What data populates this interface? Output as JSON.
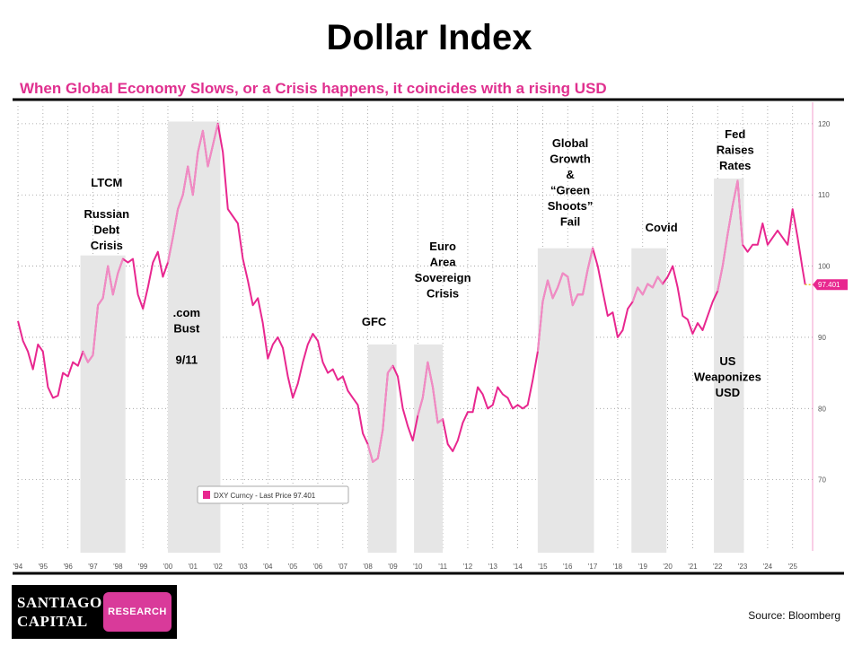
{
  "header": {
    "title": "Dollar Index",
    "subtitle": "When Global Economy Slows, or a Crisis happens, it coincides with a rising USD"
  },
  "footer": {
    "logo_line1": "Santiago",
    "logo_line2": "Capital",
    "logo_badge": "RESEARCH",
    "source": "Source:  Bloomberg"
  },
  "colors": {
    "line": "#e8278f",
    "line_light": "#f08cc4",
    "band": "#e6e6e6",
    "subtitle": "#e0308f"
  },
  "chart_data": {
    "type": "line",
    "series": [
      {
        "name": "DXY Curncy - Last Price 97.401",
        "last_value": "97.401"
      }
    ],
    "x_ticks": [
      "'94",
      "'95",
      "'96",
      "'97",
      "'98",
      "'99",
      "'00",
      "'01",
      "'02",
      "'03",
      "'04",
      "'05",
      "'06",
      "'07",
      "'08",
      "'09",
      "'10",
      "'11",
      "'12",
      "'13",
      "'14",
      "'15",
      "'16",
      "'17",
      "'18",
      "'19",
      "'20",
      "'21",
      "'22",
      "'23",
      "'24",
      "'25"
    ],
    "y_ticks": [
      "70",
      "80",
      "90",
      "100",
      "110",
      "120"
    ],
    "xlim": [
      1994.0,
      2025.8
    ],
    "ylim": [
      60,
      122
    ],
    "points": [
      [
        1994.0,
        92.3
      ],
      [
        1994.2,
        89.5
      ],
      [
        1994.4,
        88.0
      ],
      [
        1994.6,
        85.5
      ],
      [
        1994.8,
        89.0
      ],
      [
        1995.0,
        88.0
      ],
      [
        1995.2,
        83.0
      ],
      [
        1995.4,
        81.5
      ],
      [
        1995.6,
        81.8
      ],
      [
        1995.8,
        85.0
      ],
      [
        1996.0,
        84.5
      ],
      [
        1996.2,
        86.5
      ],
      [
        1996.4,
        86.0
      ],
      [
        1996.6,
        88.0
      ],
      [
        1996.8,
        86.5
      ],
      [
        1997.0,
        87.5
      ],
      [
        1997.2,
        94.5
      ],
      [
        1997.4,
        95.5
      ],
      [
        1997.6,
        100.0
      ],
      [
        1997.8,
        96.0
      ],
      [
        1998.0,
        99.0
      ],
      [
        1998.2,
        101.0
      ],
      [
        1998.4,
        100.5
      ],
      [
        1998.6,
        101.0
      ],
      [
        1998.8,
        96.0
      ],
      [
        1999.0,
        94.0
      ],
      [
        1999.2,
        97.0
      ],
      [
        1999.4,
        100.5
      ],
      [
        1999.6,
        102.0
      ],
      [
        1999.8,
        98.5
      ],
      [
        2000.0,
        100.5
      ],
      [
        2000.2,
        104.0
      ],
      [
        2000.4,
        108.0
      ],
      [
        2000.6,
        110.0
      ],
      [
        2000.8,
        114.0
      ],
      [
        2001.0,
        110.0
      ],
      [
        2001.2,
        116.0
      ],
      [
        2001.4,
        119.0
      ],
      [
        2001.6,
        114.0
      ],
      [
        2001.8,
        117.0
      ],
      [
        2002.0,
        120.0
      ],
      [
        2002.2,
        116.0
      ],
      [
        2002.4,
        108.0
      ],
      [
        2002.6,
        107.0
      ],
      [
        2002.8,
        106.0
      ],
      [
        2003.0,
        101.0
      ],
      [
        2003.2,
        98.0
      ],
      [
        2003.4,
        94.5
      ],
      [
        2003.6,
        95.5
      ],
      [
        2003.8,
        92.0
      ],
      [
        2004.0,
        87.0
      ],
      [
        2004.2,
        89.0
      ],
      [
        2004.4,
        90.0
      ],
      [
        2004.6,
        88.5
      ],
      [
        2004.8,
        84.5
      ],
      [
        2005.0,
        81.5
      ],
      [
        2005.2,
        83.5
      ],
      [
        2005.4,
        86.5
      ],
      [
        2005.6,
        89.0
      ],
      [
        2005.8,
        90.5
      ],
      [
        2006.0,
        89.5
      ],
      [
        2006.2,
        86.5
      ],
      [
        2006.4,
        85.0
      ],
      [
        2006.6,
        85.5
      ],
      [
        2006.8,
        84.0
      ],
      [
        2007.0,
        84.5
      ],
      [
        2007.2,
        82.5
      ],
      [
        2007.4,
        81.5
      ],
      [
        2007.6,
        80.5
      ],
      [
        2007.8,
        76.5
      ],
      [
        2008.0,
        75.0
      ],
      [
        2008.2,
        72.5
      ],
      [
        2008.4,
        73.0
      ],
      [
        2008.6,
        77.0
      ],
      [
        2008.8,
        85.0
      ],
      [
        2009.0,
        86.0
      ],
      [
        2009.2,
        84.5
      ],
      [
        2009.4,
        80.0
      ],
      [
        2009.6,
        77.5
      ],
      [
        2009.8,
        75.5
      ],
      [
        2010.0,
        79.0
      ],
      [
        2010.2,
        81.5
      ],
      [
        2010.4,
        86.5
      ],
      [
        2010.6,
        83.0
      ],
      [
        2010.8,
        78.0
      ],
      [
        2011.0,
        78.5
      ],
      [
        2011.2,
        75.0
      ],
      [
        2011.4,
        74.0
      ],
      [
        2011.6,
        75.5
      ],
      [
        2011.8,
        78.0
      ],
      [
        2012.0,
        79.5
      ],
      [
        2012.2,
        79.5
      ],
      [
        2012.4,
        83.0
      ],
      [
        2012.6,
        82.0
      ],
      [
        2012.8,
        80.0
      ],
      [
        2013.0,
        80.5
      ],
      [
        2013.2,
        83.0
      ],
      [
        2013.4,
        82.0
      ],
      [
        2013.6,
        81.5
      ],
      [
        2013.8,
        80.0
      ],
      [
        2014.0,
        80.5
      ],
      [
        2014.2,
        80.0
      ],
      [
        2014.4,
        80.5
      ],
      [
        2014.6,
        84.0
      ],
      [
        2014.8,
        88.0
      ],
      [
        2015.0,
        95.0
      ],
      [
        2015.2,
        98.0
      ],
      [
        2015.4,
        95.5
      ],
      [
        2015.6,
        97.0
      ],
      [
        2015.8,
        99.0
      ],
      [
        2016.0,
        98.5
      ],
      [
        2016.2,
        94.5
      ],
      [
        2016.4,
        96.0
      ],
      [
        2016.6,
        96.0
      ],
      [
        2016.8,
        99.5
      ],
      [
        2017.0,
        102.5
      ],
      [
        2017.2,
        100.0
      ],
      [
        2017.4,
        96.5
      ],
      [
        2017.6,
        93.0
      ],
      [
        2017.8,
        93.5
      ],
      [
        2018.0,
        90.0
      ],
      [
        2018.2,
        91.0
      ],
      [
        2018.4,
        94.0
      ],
      [
        2018.6,
        95.0
      ],
      [
        2018.8,
        97.0
      ],
      [
        2019.0,
        96.0
      ],
      [
        2019.2,
        97.5
      ],
      [
        2019.4,
        97.0
      ],
      [
        2019.6,
        98.5
      ],
      [
        2019.8,
        97.5
      ],
      [
        2020.0,
        98.5
      ],
      [
        2020.2,
        100.0
      ],
      [
        2020.4,
        97.0
      ],
      [
        2020.6,
        93.0
      ],
      [
        2020.8,
        92.5
      ],
      [
        2021.0,
        90.5
      ],
      [
        2021.2,
        92.0
      ],
      [
        2021.4,
        91.0
      ],
      [
        2021.6,
        93.0
      ],
      [
        2021.8,
        95.0
      ],
      [
        2022.0,
        96.5
      ],
      [
        2022.2,
        100.0
      ],
      [
        2022.4,
        104.5
      ],
      [
        2022.6,
        108.5
      ],
      [
        2022.8,
        112.0
      ],
      [
        2023.0,
        103.0
      ],
      [
        2023.2,
        102.0
      ],
      [
        2023.4,
        103.0
      ],
      [
        2023.6,
        103.0
      ],
      [
        2023.8,
        106.0
      ],
      [
        2024.0,
        103.0
      ],
      [
        2024.2,
        104.0
      ],
      [
        2024.4,
        105.0
      ],
      [
        2024.6,
        104.0
      ],
      [
        2024.8,
        103.0
      ],
      [
        2025.0,
        108.0
      ],
      [
        2025.2,
        104.0
      ],
      [
        2025.4,
        99.5
      ],
      [
        2025.5,
        97.4
      ]
    ],
    "crisis_bands": [
      {
        "from": 1996.5,
        "to": 1998.3,
        "label": [
          "LTCM",
          "",
          "Russian",
          "Debt",
          "Crisis"
        ],
        "label_at": 1997.55
      },
      {
        "from": 2000.0,
        "to": 2002.1,
        "label": [
          ".com",
          "Bust",
          "",
          "9/11"
        ],
        "label_at": 2000.75
      },
      {
        "from": 2008.0,
        "to": 2009.15,
        "label": [
          "GFC"
        ],
        "label_at": 2008.25
      },
      {
        "from": 2009.85,
        "to": 2011.0,
        "label": [
          "Euro",
          "Area",
          "Sovereign",
          "Crisis"
        ],
        "label_at": 2011.0
      },
      {
        "from": 2014.8,
        "to": 2017.05,
        "label": [
          "Global",
          "Growth",
          "&",
          "“Green",
          "Shoots”",
          "Fail"
        ],
        "label_at": 2016.1
      },
      {
        "from": 2018.55,
        "to": 2019.95,
        "label": [
          "Covid"
        ],
        "label_at": 2019.75
      },
      {
        "from": 2021.85,
        "to": 2023.05,
        "label": [
          "Fed",
          "Raises",
          "Rates"
        ],
        "label_at": 2022.7
      }
    ],
    "annotations": [
      {
        "text": [
          "US",
          "Weaponizes",
          "USD"
        ],
        "at_x": 2022.4
      }
    ],
    "legend": {
      "text": "DXY Curncy - Last Price 97.401",
      "placement": "lower-left"
    },
    "price_tag": "97.401"
  }
}
